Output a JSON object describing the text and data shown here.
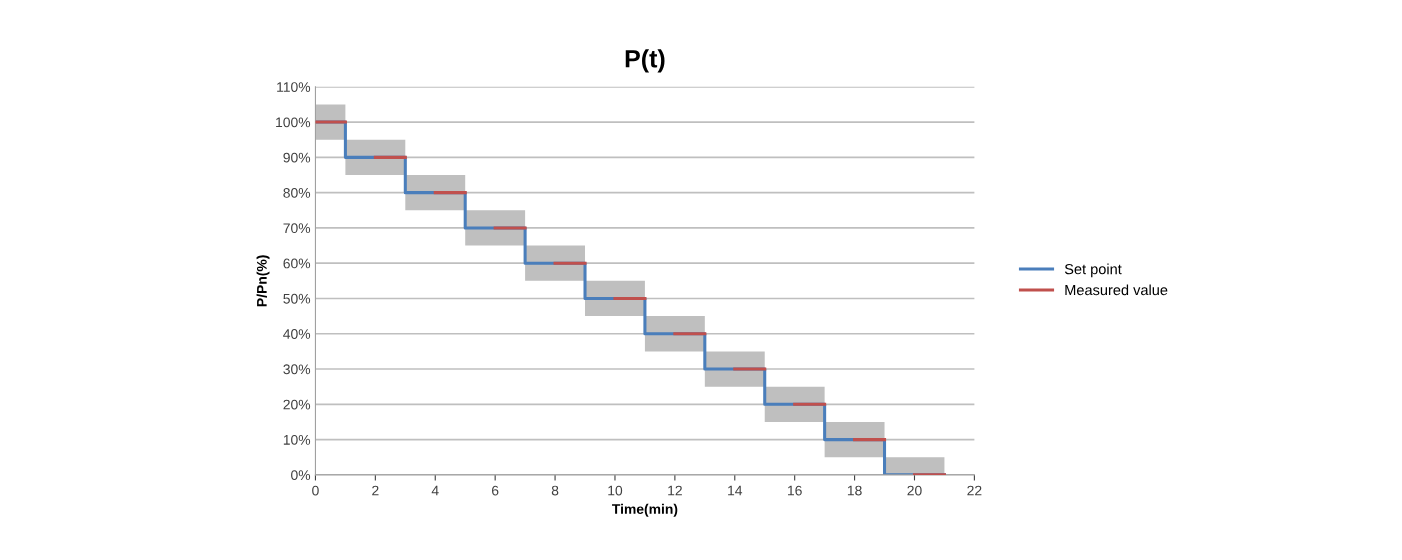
{
  "chart_data": {
    "type": "step",
    "title": "P(t)",
    "xlabel": "Time(min)",
    "ylabel": "P/Pn(%)",
    "xlim": [
      0,
      22
    ],
    "xticks": [
      0,
      2,
      4,
      6,
      8,
      10,
      12,
      14,
      16,
      18,
      20,
      22
    ],
    "ylim": [
      0,
      110
    ],
    "yticks": [
      {
        "value": 0,
        "label": "0%"
      },
      {
        "value": 10,
        "label": "10%"
      },
      {
        "value": 20,
        "label": "20%"
      },
      {
        "value": 30,
        "label": "30%"
      },
      {
        "value": 40,
        "label": "40%"
      },
      {
        "value": 50,
        "label": "50%"
      },
      {
        "value": 60,
        "label": "60%"
      },
      {
        "value": 70,
        "label": "70%"
      },
      {
        "value": 80,
        "label": "80%"
      },
      {
        "value": 90,
        "label": "90%"
      },
      {
        "value": 100,
        "label": "100%"
      },
      {
        "value": 110,
        "label": "110%"
      }
    ],
    "grid": "y",
    "legend": "right",
    "marker": "none",
    "line_style": "solid",
    "series": [
      {
        "name": "Set point",
        "color": "#4a7ebb",
        "x": [
          0,
          1,
          3,
          5,
          7,
          9,
          11,
          13,
          15,
          17,
          19,
          21
        ],
        "values": [
          100,
          90,
          80,
          70,
          60,
          50,
          40,
          30,
          20,
          10,
          0,
          0
        ],
        "lower": [
          95,
          85,
          75,
          65,
          55,
          45,
          35,
          25,
          15,
          5,
          0,
          0
        ],
        "upper": [
          105,
          95,
          85,
          75,
          65,
          55,
          45,
          35,
          25,
          15,
          5,
          5
        ]
      },
      {
        "name": "Measured value",
        "color": "#c0504d",
        "type": "line",
        "x": [
          0,
          1,
          1.5,
          2,
          3,
          3.5,
          4,
          5,
          5.5,
          6,
          7,
          7.5,
          8,
          9,
          9.5,
          10,
          11,
          11.5,
          12,
          13,
          13.5,
          14,
          15,
          15.5,
          16,
          17,
          17.5,
          18,
          19,
          19.5,
          20,
          21
        ],
        "values": [
          100,
          100,
          null,
          90,
          90,
          null,
          80,
          80,
          null,
          70,
          70,
          null,
          60,
          60,
          null,
          50,
          50,
          null,
          40,
          40,
          null,
          30,
          30,
          null,
          20,
          20,
          null,
          10,
          10,
          null,
          0,
          0
        ]
      }
    ]
  }
}
